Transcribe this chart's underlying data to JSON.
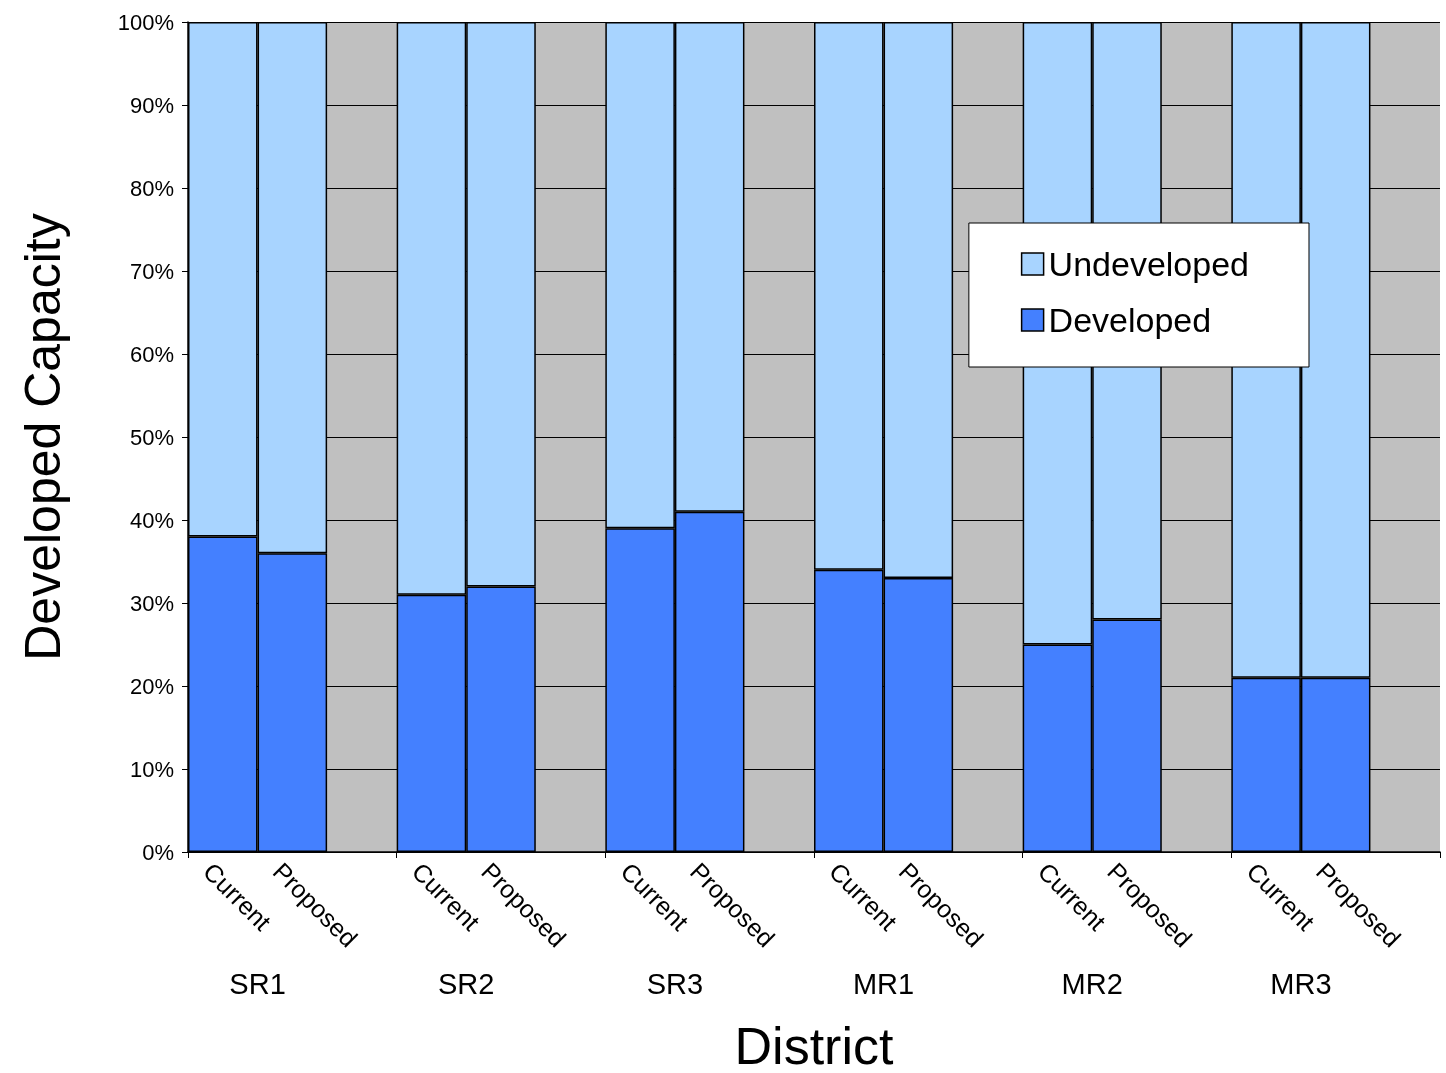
{
  "chart_data": {
    "type": "bar",
    "stacked": true,
    "xlabel": "District",
    "ylabel": "Developed Capacity",
    "categories": [
      "Current",
      "Proposed",
      "Current",
      "Proposed",
      "Current",
      "Proposed",
      "Current",
      "Proposed",
      "Current",
      "Proposed",
      "Current",
      "Proposed"
    ],
    "annotations": [
      "SR1",
      "SR2",
      "SR3",
      "MR1",
      "MR2",
      "MR3"
    ],
    "series": [
      {
        "name": "Developed",
        "color": "#4480ff",
        "values": [
          38,
          36,
          31,
          32,
          39,
          41,
          34,
          33,
          25,
          28,
          21,
          21
        ]
      },
      {
        "name": "Undeveloped",
        "color": "#a8d4ff",
        "values": [
          62,
          64,
          69,
          68,
          61,
          59,
          66,
          67,
          75,
          72,
          79,
          79
        ]
      }
    ],
    "ylim": [
      0,
      100
    ],
    "yticks": [
      {
        "value": 0,
        "label": "0%"
      },
      {
        "value": 10,
        "label": "10%"
      },
      {
        "value": 20,
        "label": "20%"
      },
      {
        "value": 30,
        "label": "30%"
      },
      {
        "value": 40,
        "label": "40%"
      },
      {
        "value": 50,
        "label": "50%"
      },
      {
        "value": 60,
        "label": "60%"
      },
      {
        "value": 70,
        "label": "70%"
      },
      {
        "value": 80,
        "label": "80%"
      },
      {
        "value": 90,
        "label": "90%"
      },
      {
        "value": 100,
        "label": "100%"
      }
    ],
    "grid": "y",
    "legend": "top right"
  }
}
